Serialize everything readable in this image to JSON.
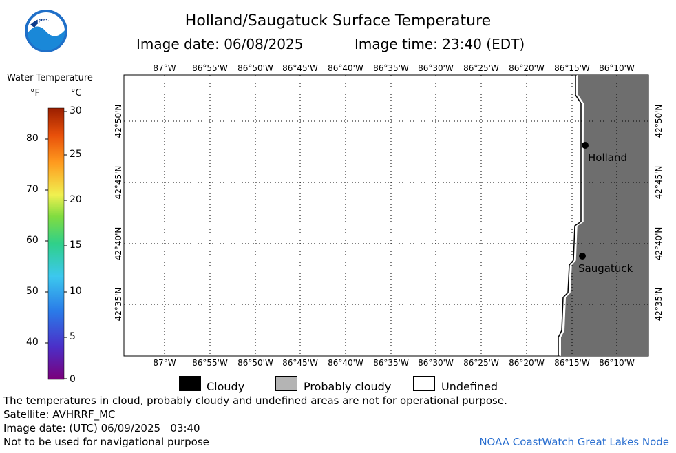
{
  "header": {
    "logo_text": "NOAA",
    "title": "Holland/Saugatuck Surface Temperature",
    "image_date": "Image date: 06/08/2025",
    "image_time": "Image time: 23:40 (EDT)"
  },
  "legend": {
    "title": "Water Temperature",
    "unit_f": "°F",
    "unit_c": "°C",
    "f_ticks": [
      "80",
      "70",
      "60",
      "50",
      "40"
    ],
    "c_ticks": [
      "30",
      "25",
      "20",
      "15",
      "10",
      "5",
      "0"
    ]
  },
  "map": {
    "lon_labels": [
      "87°W",
      "86°55'W",
      "86°50'W",
      "86°45'W",
      "86°40'W",
      "86°35'W",
      "86°30'W",
      "86°25'W",
      "86°20'W",
      "86°15'W",
      "86°10'W"
    ],
    "lat_labels": [
      "42°50'N",
      "42°45'N",
      "42°40'N",
      "42°35'N"
    ],
    "places": [
      {
        "name": "Holland"
      },
      {
        "name": "Saugatuck"
      }
    ],
    "colors": {
      "land": "#6e6e6e",
      "water": "#ffffff",
      "grid": "#000000"
    }
  },
  "key": {
    "cloudy": "Cloudy",
    "probably_cloudy": "Probably cloudy",
    "undefined": "Undefined",
    "colors": {
      "cloudy": "#000000",
      "probably_cloudy": "#b4b4b4",
      "undefined": "#ffffff"
    }
  },
  "footer": {
    "disclaimer": "The temperatures in cloud, probably cloudy and undefined areas are not for operational purpose.",
    "satellite": "Satellite: AVHRRF_MC",
    "utc_date": "Image date: (UTC) 06/09/2025   03:40",
    "nav_note": "Not to be used for navigational purpose",
    "credit": "NOAA CoastWatch Great Lakes Node"
  }
}
